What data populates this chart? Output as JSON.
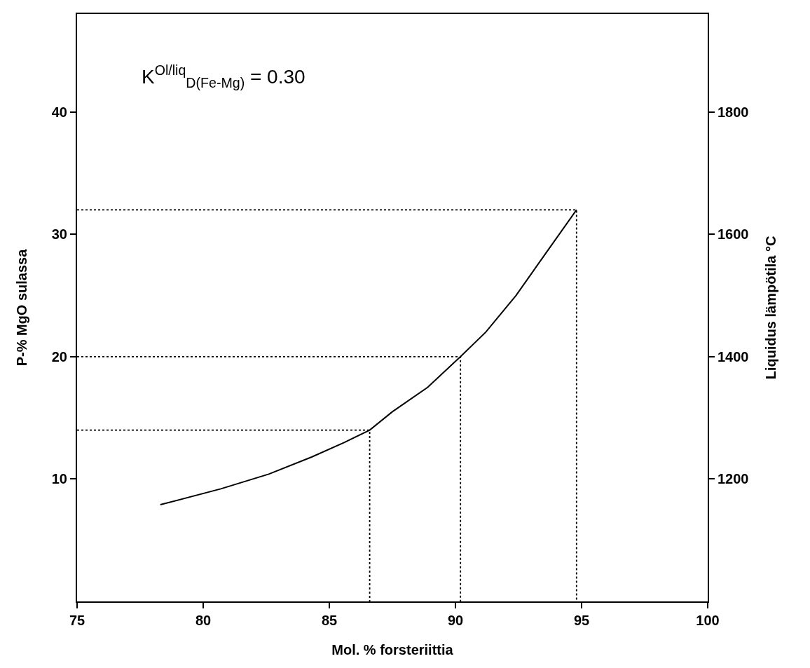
{
  "chart_data": {
    "type": "line",
    "x": [
      78.3,
      80.7,
      82.6,
      84.3,
      85.6,
      86.6,
      87.5,
      88.9,
      90.2,
      91.2,
      92.4,
      93.6,
      94.8
    ],
    "series": [
      {
        "color": "#000000",
        "values": [
          7.9,
          9.2,
          10.4,
          11.8,
          13.0,
          14.0,
          15.5,
          17.5,
          20.0,
          22.0,
          25.0,
          28.5,
          32.0
        ],
        "line_style": "solid"
      },
      {
        "color": "#000000",
        "x": [
          75,
          86.6,
          86.6
        ],
        "values": [
          14,
          14,
          0
        ],
        "line_style": "dotted"
      },
      {
        "color": "#000000",
        "x": [
          75,
          90.2,
          90.2
        ],
        "values": [
          20,
          20,
          0
        ],
        "line_style": "dotted"
      },
      {
        "color": "#000000",
        "x": [
          75,
          94.8,
          94.8
        ],
        "values": [
          32,
          32,
          0
        ],
        "line_style": "dotted"
      }
    ],
    "xlabel": "Mol. % forsteriittia",
    "ylabel": "P-% MgO sulassa",
    "y2label": "Liquidus lämpötila °C",
    "xlim": [
      75,
      100
    ],
    "xticks": [
      75,
      80,
      85,
      90,
      95,
      100
    ],
    "ylim": [
      0,
      48
    ],
    "yticks": [
      10,
      20,
      30,
      40
    ],
    "y2lim": [
      1000,
      1960
    ],
    "y2ticks": [
      1200,
      1400,
      1600,
      1800
    ],
    "annotations": [
      "K$^{Ol/liq}$$_{D(Fe-Mg)}$ = 0.30"
    ],
    "marker": "none"
  }
}
